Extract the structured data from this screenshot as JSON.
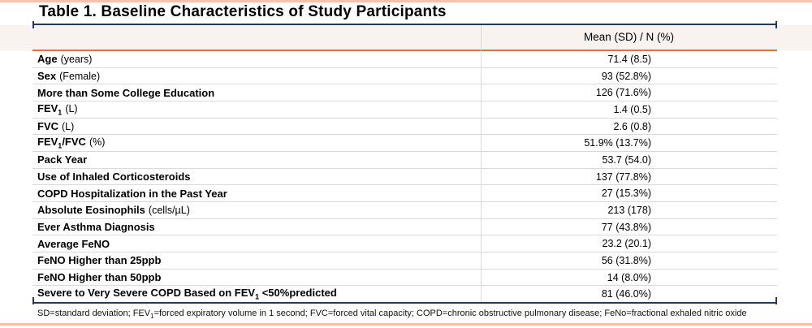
{
  "title": "Table 1. Baseline Characteristics of Study Participants",
  "table": {
    "header": {
      "value_col": "Mean (SD) / N (%)"
    },
    "rows": [
      {
        "bold": "Age",
        "sub": "",
        "bold2": "",
        "regular": "(years)",
        "value": "71.4 (8.5)"
      },
      {
        "bold": "Sex",
        "sub": "",
        "bold2": "",
        "regular": "(Female)",
        "value": "93 (52.8%)"
      },
      {
        "bold": "More than Some College Education",
        "sub": "",
        "bold2": "",
        "regular": "",
        "value": "126 (71.6%)"
      },
      {
        "bold": "FEV",
        "sub": "1",
        "bold2": "",
        "regular": "(L)",
        "value": "1.4 (0.5)"
      },
      {
        "bold": "FVC",
        "sub": "",
        "bold2": "",
        "regular": "(L)",
        "value": "2.6 (0.8)"
      },
      {
        "bold": "FEV",
        "sub": "1",
        "bold2": "/FVC",
        "regular": "(%)",
        "value": "51.9% (13.7%)"
      },
      {
        "bold": "Pack Year",
        "sub": "",
        "bold2": "",
        "regular": "",
        "value": "53.7 (54.0)"
      },
      {
        "bold": "Use of Inhaled Corticosteroids",
        "sub": "",
        "bold2": "",
        "regular": "",
        "value": "137 (77.8%)"
      },
      {
        "bold": "COPD Hospitalization in the Past Year",
        "sub": "",
        "bold2": "",
        "regular": "",
        "value": "27 (15.3%)"
      },
      {
        "bold": "Absolute Eosinophils",
        "sub": "",
        "bold2": "",
        "regular": "(cells/µL)",
        "value": "213 (178)"
      },
      {
        "bold": "Ever Asthma Diagnosis",
        "sub": "",
        "bold2": "",
        "regular": "",
        "value": "77 (43.8%)"
      },
      {
        "bold": "Average FeNO",
        "sub": "",
        "bold2": "",
        "regular": "",
        "value": "23.2 (20.1)"
      },
      {
        "bold": "FeNO Higher than 25ppb",
        "sub": "",
        "bold2": "",
        "regular": "",
        "value": "56 (31.8%)"
      },
      {
        "bold": "FeNO Higher than 50ppb",
        "sub": "",
        "bold2": "",
        "regular": "",
        "value": "14 (8.0%)"
      },
      {
        "bold": "Severe to Very Severe COPD Based on FEV",
        "sub": "1",
        "bold2": " <50%predicted",
        "regular": "",
        "value": "81 (46.0%)"
      }
    ]
  },
  "footnote": {
    "pre": "SD=standard deviation; FEV",
    "sub": "1",
    "post": "=forced expiratory volume in 1 second; FVC=forced vital capacity; COPD=chronic obstructive pulmonary disease; FeNo=fractional exhaled nitric oxide"
  },
  "colors": {
    "rule_salmon": "#f4c3a7",
    "border_navy": "#243a5e",
    "accent_orange": "#e8702e",
    "header_band": "#f9f3ef",
    "row_separator": "#d9d9d9"
  }
}
